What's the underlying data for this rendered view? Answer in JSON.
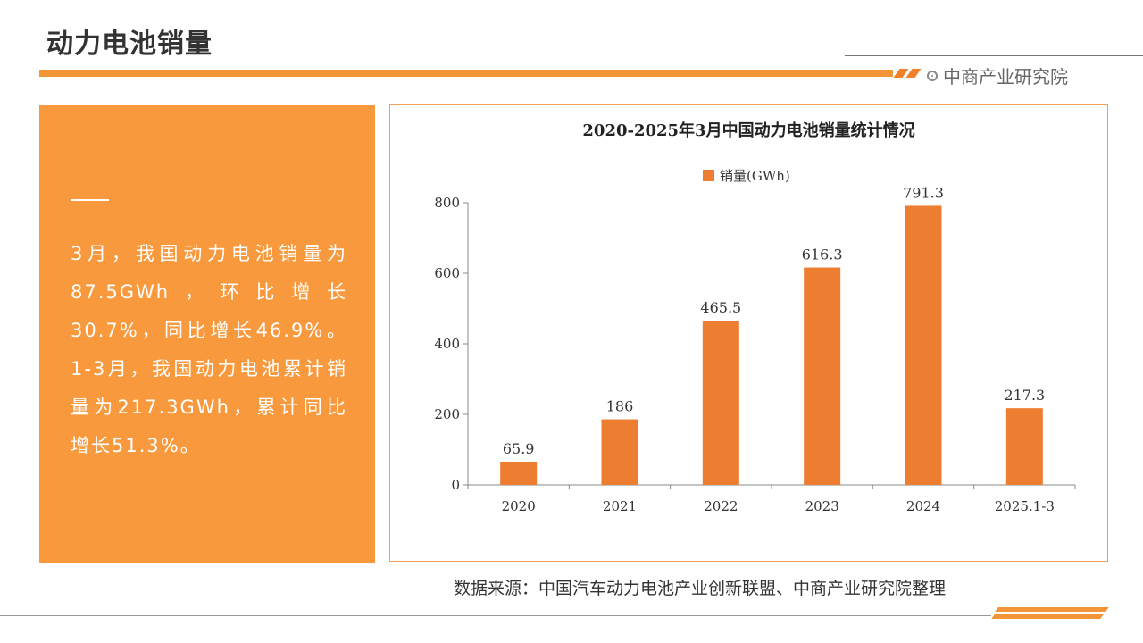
{
  "header": {
    "title": "动力电池销量",
    "brand": "中商产业研究院"
  },
  "summary": {
    "text": "3月，我国动力电池销量为87.5GWh，环比增长30.7%，同比增长46.9%。1-3月，我国动力电池累计销量为217.3GWh，累计同比增长51.3%。"
  },
  "chart_data": {
    "type": "bar",
    "title": "2020-2025年3月中国动力电池销量统计情况",
    "categories": [
      "2020",
      "2021",
      "2022",
      "2023",
      "2024",
      "2025.1-3"
    ],
    "series": [
      {
        "name": "销量(GWh)",
        "values": [
          65.9,
          186,
          465.5,
          616.3,
          791.3,
          217.3
        ],
        "labels": [
          "65.9",
          "186",
          "465.5",
          "616.3",
          "791.3",
          "217.3"
        ]
      }
    ],
    "ylim": [
      0,
      800
    ],
    "yticks": [
      0,
      200,
      400,
      600,
      800
    ],
    "color": "#ed7d31",
    "legend": "top",
    "grid": false
  },
  "footer": {
    "source": "数据来源：中国汽车动力电池产业创新联盟、中商产业研究院整理"
  },
  "colors": {
    "accent": "#f39537",
    "bar": "#ed7d31"
  }
}
